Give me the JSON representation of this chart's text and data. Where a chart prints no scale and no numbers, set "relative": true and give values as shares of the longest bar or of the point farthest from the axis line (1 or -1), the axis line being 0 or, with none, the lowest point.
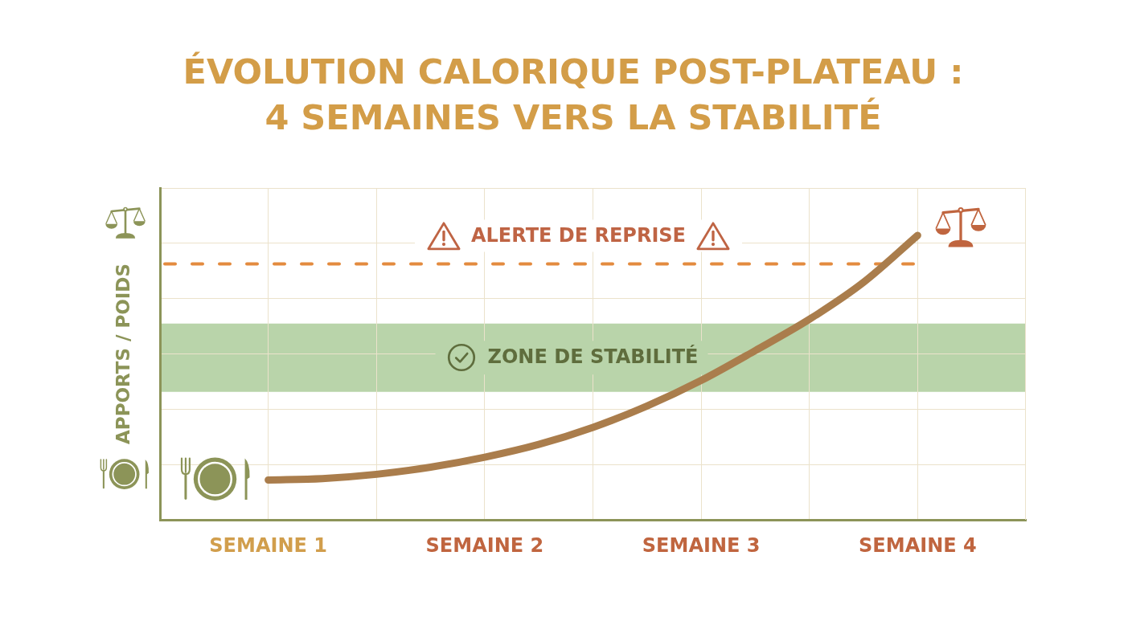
{
  "chart_data": {
    "type": "line",
    "title": "ÉVOLUTION CALORIQUE POST-PLATEAU : 4 SEMAINES VERS LA STABILITÉ",
    "ylabel": "APPORTS / POIDS",
    "categories": [
      "SEMAINE 1",
      null,
      null,
      null,
      "SEMAINE 2",
      null,
      null,
      null,
      "SEMAINE 3",
      null,
      null,
      null,
      "SEMAINE 4"
    ],
    "relative": true,
    "series": [
      {
        "color": "#aa7d4c",
        "values": [
          0.14,
          0.145,
          0.16,
          0.185,
          0.22,
          0.265,
          0.325,
          0.4,
          0.49,
          0.595,
          0.705,
          0.835,
          1
        ]
      }
    ],
    "ref_lines": [
      {
        "axis": "y",
        "value": 0.9,
        "label": "ALERTE DE REPRISE",
        "color": "#e38b3f",
        "line_style": "dashed"
      }
    ],
    "bands": [
      {
        "axis": "y",
        "from": 0.45,
        "to": 0.69,
        "label": "ZONE DE STABILITÉ",
        "color": "#b9d4aa"
      }
    ],
    "grid": true
  }
}
